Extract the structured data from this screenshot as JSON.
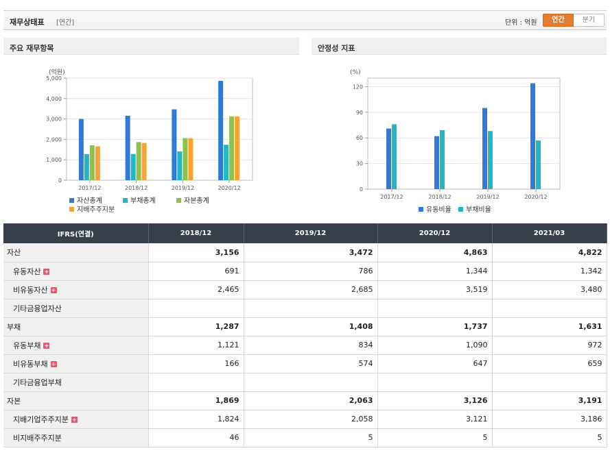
{
  "header": {
    "title": "재무상태표",
    "subtitle": "[연간]",
    "unit_label": "단위 : 억원",
    "toggle_annual": "연간",
    "toggle_quarter": "분기"
  },
  "panels": {
    "left_title": "주요 재무항목",
    "right_title": "안정성 지표"
  },
  "colors": {
    "series1": "#2f7ad9",
    "series2": "#20b8c9",
    "series3": "#8ec04a",
    "series4": "#f7a532",
    "toggle_active": "#e57b2c",
    "table_header": "#363f4a"
  },
  "chart_data": [
    {
      "type": "bar",
      "unit_label": "(억원)",
      "categories": [
        "2017/12",
        "2018/12",
        "2019/12",
        "2020/12"
      ],
      "series": [
        {
          "name": "자산총계",
          "values": [
            3000,
            3156,
            3472,
            4863
          ]
        },
        {
          "name": "부채총계",
          "values": [
            1280,
            1287,
            1408,
            1737
          ]
        },
        {
          "name": "자본총계",
          "values": [
            1710,
            1869,
            2063,
            3126
          ]
        },
        {
          "name": "지배주주지분",
          "values": [
            1660,
            1824,
            2058,
            3121
          ]
        }
      ],
      "ylim": [
        0,
        5000
      ],
      "yticks": [
        "0",
        "1,000",
        "2,000",
        "3,000",
        "4,000",
        "5,000"
      ],
      "grid": true,
      "legend": "bottom"
    },
    {
      "type": "bar",
      "unit_label": "(%)",
      "categories": [
        "2017/12",
        "2018/12",
        "2019/12",
        "2020/12"
      ],
      "series": [
        {
          "name": "유동비율",
          "values": [
            71,
            62,
            95,
            124
          ]
        },
        {
          "name": "부채비율",
          "values": [
            76,
            69,
            68,
            57
          ]
        }
      ],
      "ylim": [
        0,
        130
      ],
      "yticks": [
        "0",
        "30",
        "60",
        "90",
        "120"
      ],
      "grid": true,
      "legend": "bottom"
    }
  ],
  "table": {
    "headers": [
      "IFRS(연결)",
      "2018/12",
      "2019/12",
      "2020/12",
      "2021/03"
    ],
    "rows": [
      {
        "label": "자산",
        "values": [
          "3,156",
          "3,472",
          "4,863",
          "4,822"
        ],
        "level": "main",
        "expandable": false
      },
      {
        "label": "유동자산",
        "values": [
          "691",
          "786",
          "1,344",
          "1,342"
        ],
        "level": "sub",
        "expandable": true
      },
      {
        "label": "비유동자산",
        "values": [
          "2,465",
          "2,685",
          "3,519",
          "3,480"
        ],
        "level": "sub",
        "expandable": true
      },
      {
        "label": "기타금융업자산",
        "values": [
          "",
          "",
          "",
          ""
        ],
        "level": "sub",
        "expandable": false
      },
      {
        "label": "부채",
        "values": [
          "1,287",
          "1,408",
          "1,737",
          "1,631"
        ],
        "level": "main",
        "expandable": false
      },
      {
        "label": "유동부채",
        "values": [
          "1,121",
          "834",
          "1,090",
          "972"
        ],
        "level": "sub",
        "expandable": true
      },
      {
        "label": "비유동부채",
        "values": [
          "166",
          "574",
          "647",
          "659"
        ],
        "level": "sub",
        "expandable": true
      },
      {
        "label": "기타금융업부채",
        "values": [
          "",
          "",
          "",
          ""
        ],
        "level": "sub",
        "expandable": false
      },
      {
        "label": "자본",
        "values": [
          "1,869",
          "2,063",
          "3,126",
          "3,191"
        ],
        "level": "main",
        "expandable": false
      },
      {
        "label": "지배기업주주지분",
        "values": [
          "1,824",
          "2,058",
          "3,121",
          "3,186"
        ],
        "level": "sub",
        "expandable": true
      },
      {
        "label": "비지배주주지분",
        "values": [
          "46",
          "5",
          "5",
          "5"
        ],
        "level": "sub",
        "expandable": false
      }
    ]
  }
}
